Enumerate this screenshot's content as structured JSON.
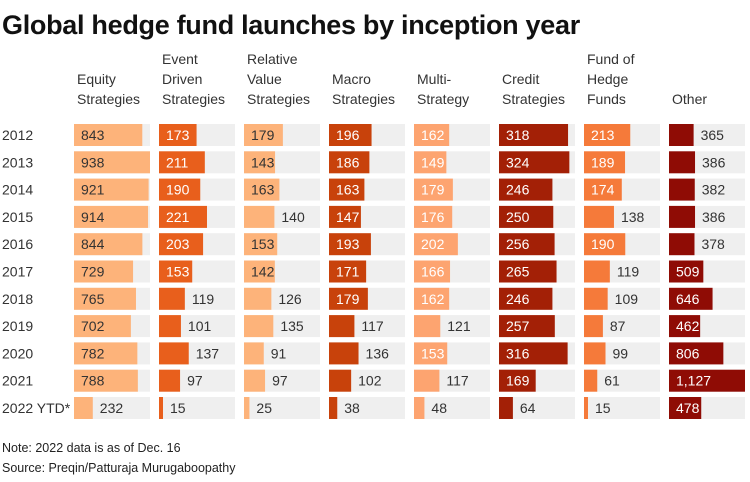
{
  "chart_data": {
    "type": "table",
    "title": "Global hedge fund launches by inception year",
    "categories": [
      "2012",
      "2013",
      "2014",
      "2015",
      "2016",
      "2017",
      "2018",
      "2019",
      "2020",
      "2021",
      "2022 YTD*"
    ],
    "series": [
      {
        "name": "Equity Strategies",
        "header_lines": [
          "Equity",
          "Strategies"
        ],
        "color": "#fdb37a",
        "text_color": "#333333",
        "values": [
          843,
          938,
          921,
          914,
          844,
          729,
          765,
          702,
          782,
          788,
          232
        ]
      },
      {
        "name": "Event Driven Strategies",
        "header_lines": [
          "Event",
          "Driven",
          "Strategies"
        ],
        "color": "#e85f1c",
        "text_color": "#ffffff",
        "values": [
          173,
          211,
          190,
          221,
          203,
          153,
          119,
          101,
          137,
          97,
          15
        ]
      },
      {
        "name": "Relative Value Strategies",
        "header_lines": [
          "Relative",
          "Value",
          "Strategies"
        ],
        "color": "#fdb37a",
        "text_color": "#333333",
        "values": [
          179,
          143,
          163,
          140,
          153,
          142,
          126,
          135,
          91,
          97,
          25
        ]
      },
      {
        "name": "Macro Strategies",
        "header_lines": [
          "Macro",
          "Strategies"
        ],
        "color": "#c8420b",
        "text_color": "#ffffff",
        "values": [
          196,
          186,
          163,
          147,
          193,
          171,
          179,
          117,
          136,
          102,
          38
        ]
      },
      {
        "name": "Multi-Strategy",
        "header_lines": [
          "Multi-",
          "Strategy"
        ],
        "color": "#fda470",
        "text_color": "#ffffff",
        "values": [
          162,
          149,
          179,
          176,
          202,
          166,
          162,
          121,
          153,
          117,
          48
        ]
      },
      {
        "name": "Credit Strategies",
        "header_lines": [
          "Credit",
          "Strategies"
        ],
        "color": "#a32006",
        "text_color": "#ffffff",
        "values": [
          318,
          324,
          246,
          250,
          256,
          265,
          246,
          257,
          316,
          169,
          64
        ]
      },
      {
        "name": "Fund of Hedge Funds",
        "header_lines": [
          "Fund of",
          "Hedge",
          "Funds"
        ],
        "color": "#f57a3a",
        "text_color": "#ffffff",
        "values": [
          213,
          189,
          174,
          138,
          190,
          119,
          109,
          87,
          99,
          61,
          15
        ]
      },
      {
        "name": "Other",
        "header_lines": [
          "Other"
        ],
        "color": "#8f0c05",
        "text_color": "#ffffff",
        "values": [
          365,
          386,
          382,
          386,
          378,
          509,
          646,
          462,
          806,
          1127,
          478
        ],
        "value_labels": [
          "365",
          "386",
          "382",
          "386",
          "378",
          "509",
          "646",
          "462",
          "806",
          "1,127",
          "478"
        ]
      }
    ],
    "note": "Note: 2022 data is as of Dec. 16",
    "source": "Source: Preqin/Patturaja Murugaboopathy"
  }
}
